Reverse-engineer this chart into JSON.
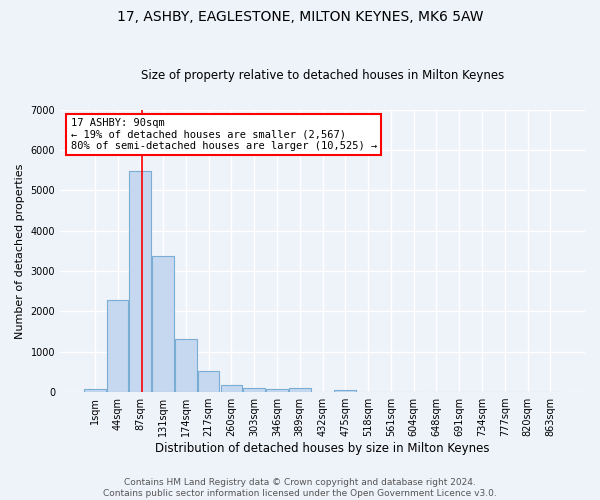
{
  "title": "17, ASHBY, EAGLESTONE, MILTON KEYNES, MK6 5AW",
  "subtitle": "Size of property relative to detached houses in Milton Keynes",
  "xlabel": "Distribution of detached houses by size in Milton Keynes",
  "ylabel": "Number of detached properties",
  "footer_line1": "Contains HM Land Registry data © Crown copyright and database right 2024.",
  "footer_line2": "Contains public sector information licensed under the Open Government Licence v3.0.",
  "bin_labels": [
    "1sqm",
    "44sqm",
    "87sqm",
    "131sqm",
    "174sqm",
    "217sqm",
    "260sqm",
    "303sqm",
    "346sqm",
    "389sqm",
    "432sqm",
    "475sqm",
    "518sqm",
    "561sqm",
    "604sqm",
    "648sqm",
    "691sqm",
    "734sqm",
    "777sqm",
    "820sqm",
    "863sqm"
  ],
  "bar_values": [
    80,
    2270,
    5480,
    3380,
    1320,
    510,
    170,
    95,
    65,
    95,
    0,
    55,
    0,
    0,
    0,
    0,
    0,
    0,
    0,
    0,
    0
  ],
  "bar_color": "#c5d8f0",
  "bar_edgecolor": "#7aadd4",
  "bar_linewidth": 0.8,
  "red_line_x": 2.07,
  "annotation_text": "17 ASHBY: 90sqm\n← 19% of detached houses are smaller (2,567)\n80% of semi-detached houses are larger (10,525) →",
  "annotation_box_color": "white",
  "annotation_box_edgecolor": "red",
  "annotation_fontsize": 7.5,
  "ylim": [
    0,
    7000
  ],
  "yticks": [
    0,
    1000,
    2000,
    3000,
    4000,
    5000,
    6000,
    7000
  ],
  "title_fontsize": 10,
  "subtitle_fontsize": 8.5,
  "xlabel_fontsize": 8.5,
  "ylabel_fontsize": 8,
  "tick_fontsize": 7,
  "background_color": "#eef2f9",
  "plot_background": "#eef2f9",
  "grid_color": "white",
  "grid_linewidth": 1.0,
  "footer_fontsize": 6.5,
  "footer_color": "#555555"
}
